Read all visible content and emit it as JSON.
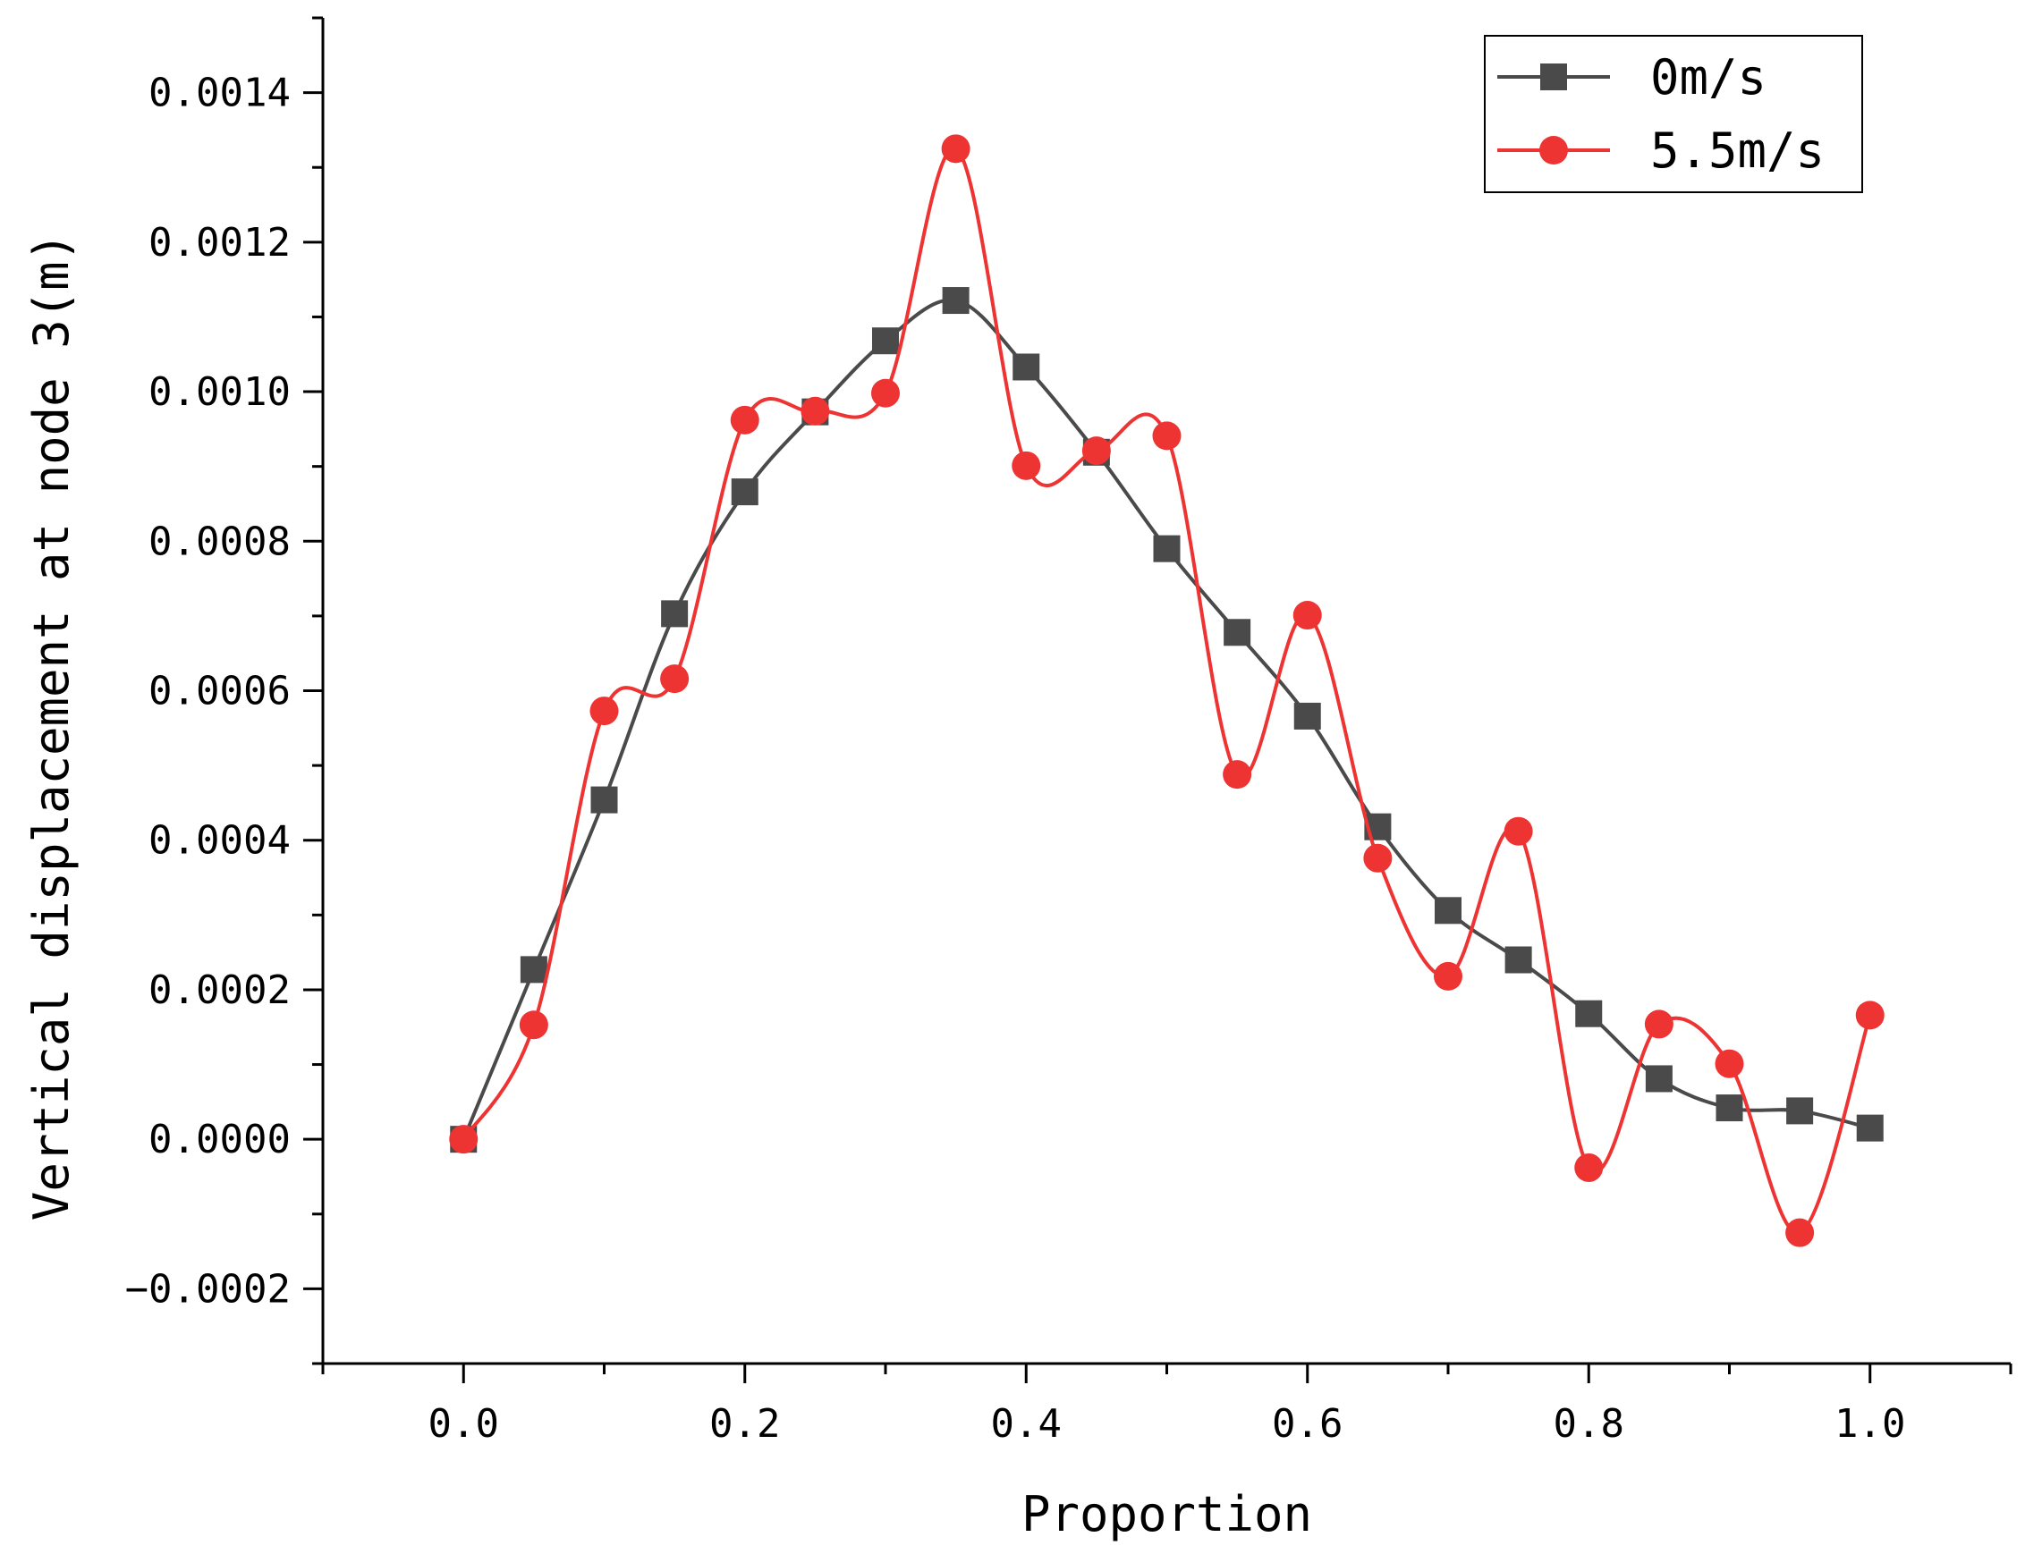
{
  "chart_data": {
    "type": "line",
    "title": "",
    "xlabel": "Proportion",
    "ylabel": "Vertical displacement at node 3(m)",
    "xlim": [
      -0.1,
      1.1
    ],
    "ylim": [
      -0.0003,
      0.0015
    ],
    "grid": false,
    "legend_position": "top-right",
    "x": [
      0.0,
      0.05,
      0.1,
      0.15,
      0.2,
      0.25,
      0.3,
      0.35,
      0.4,
      0.45,
      0.5,
      0.55,
      0.6,
      0.65,
      0.7,
      0.75,
      0.8,
      0.85,
      0.9,
      0.95,
      1.0
    ],
    "x_ticks": [
      0.0,
      0.2,
      0.4,
      0.6,
      0.8,
      1.0
    ],
    "x_tick_labels": [
      "0.0",
      "0.2",
      "0.4",
      "0.6",
      "0.8",
      "1.0"
    ],
    "y_ticks": [
      -0.0002,
      0.0,
      0.0002,
      0.0004,
      0.0006,
      0.0008,
      0.001,
      0.0012,
      0.0014
    ],
    "y_tick_labels": [
      "−0.0002",
      "0.0000",
      "0.0002",
      "0.0004",
      "0.0006",
      "0.0008",
      "0.0010",
      "0.0012",
      "0.0014"
    ],
    "series": [
      {
        "name": "0m/s",
        "color": "#4a4a4a",
        "marker": "square",
        "values": [
          0.0,
          0.000227,
          0.000454,
          0.000703,
          0.000866,
          0.000973,
          0.001068,
          0.001122,
          0.001033,
          0.000919,
          0.00079,
          0.000678,
          0.000566,
          0.000418,
          0.000306,
          0.00024,
          0.000168,
          8.1e-05,
          4.2e-05,
          3.8e-05,
          1.5e-05
        ]
      },
      {
        "name": "5.5m/s",
        "color": "#ee3333",
        "marker": "circle",
        "values": [
          0.0,
          0.000153,
          0.000573,
          0.000616,
          0.000962,
          0.000974,
          0.000998,
          0.001325,
          0.000901,
          0.000921,
          0.000941,
          0.000488,
          0.000701,
          0.000376,
          0.000218,
          0.000412,
          -3.8e-05,
          0.000154,
          0.000101,
          -0.000125,
          0.000166
        ]
      }
    ]
  }
}
